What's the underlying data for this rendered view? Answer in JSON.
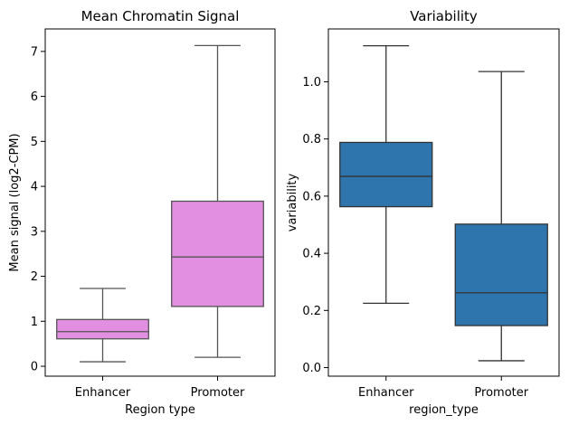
{
  "colors": {
    "left_box": "#e28fe2",
    "right_box": "#2e75ad",
    "edge": "#555555",
    "right_edge": "#333333",
    "spine": "#000000"
  },
  "chart_data": [
    {
      "type": "box",
      "title": "Mean Chromatin Signal",
      "xlabel": "Region type",
      "ylabel": "Mean signal (log2-CPM)",
      "categories": [
        "Enhancer",
        "Promoter"
      ],
      "ylim": [
        -0.22,
        7.5
      ],
      "yticks": [
        0,
        1,
        2,
        3,
        4,
        5,
        6,
        7
      ],
      "ytick_labels": [
        "0",
        "1",
        "2",
        "3",
        "4",
        "5",
        "6",
        "7"
      ],
      "grid": false,
      "boxes": [
        {
          "category": "Enhancer",
          "whisker_low": 0.1,
          "q1": 0.61,
          "median": 0.77,
          "q3": 1.04,
          "whisker_high": 1.73
        },
        {
          "category": "Promoter",
          "whisker_low": 0.2,
          "q1": 1.33,
          "median": 2.43,
          "q3": 3.67,
          "whisker_high": 7.13
        }
      ]
    },
    {
      "type": "box",
      "title": "Variability",
      "xlabel": "region_type",
      "ylabel": "variability",
      "categories": [
        "Enhancer",
        "Promoter"
      ],
      "ylim": [
        -0.03,
        1.185
      ],
      "yticks": [
        0.0,
        0.2,
        0.4,
        0.6,
        0.8,
        1.0
      ],
      "ytick_labels": [
        "0.0",
        "0.2",
        "0.4",
        "0.6",
        "0.8",
        "1.0"
      ],
      "grid": false,
      "boxes": [
        {
          "category": "Enhancer",
          "whisker_low": 0.225,
          "q1": 0.563,
          "median": 0.669,
          "q3": 0.788,
          "whisker_high": 1.126
        },
        {
          "category": "Promoter",
          "whisker_low": 0.024,
          "q1": 0.147,
          "median": 0.262,
          "q3": 0.502,
          "whisker_high": 1.036
        }
      ]
    }
  ]
}
